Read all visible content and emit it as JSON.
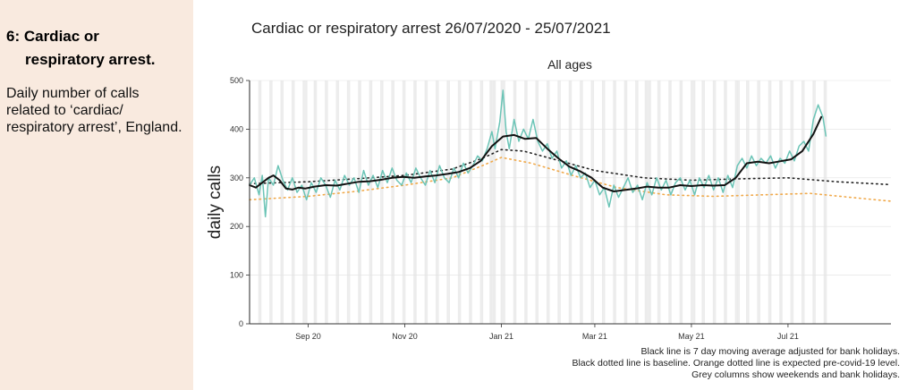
{
  "side_panel": {
    "heading_line1": "6: Cardiac or",
    "heading_line2": "respiratory  arrest.",
    "description": "Daily number of calls related to ‘cardiac/ respiratory arrest’, England."
  },
  "colors": {
    "panel_bg": "#f9eadf",
    "daily": "#6bc4b6",
    "moving_average": "#111111",
    "baseline": "#222222",
    "expected": "#f0a94a",
    "grey_columns": "#ececec"
  },
  "chart_data": {
    "type": "line",
    "title": "Cardiac or respiratory arrest 26/07/2020 - 25/07/2021",
    "subtitle": "All ages",
    "xlabel": "",
    "ylabel": "daily calls",
    "x_range": [
      "2020-07-26",
      "2021-09-04"
    ],
    "ylim": [
      0,
      500
    ],
    "y_ticks": [
      0,
      100,
      200,
      300,
      400,
      500
    ],
    "x_ticks": [
      {
        "date": "2020-09-01",
        "label": "Sep 20"
      },
      {
        "date": "2020-11-01",
        "label": "Nov 20"
      },
      {
        "date": "2021-01-01",
        "label": "Jan 21"
      },
      {
        "date": "2021-03-01",
        "label": "Mar 21"
      },
      {
        "date": "2021-05-01",
        "label": "May 21"
      },
      {
        "date": "2021-07-01",
        "label": "Jul 21"
      }
    ],
    "grey_columns": "weekends and bank holidays",
    "bank_holidays": [
      "2020-08-31",
      "2020-12-25",
      "2020-12-28",
      "2021-01-01",
      "2021-04-02",
      "2021-04-05",
      "2021-05-03",
      "2021-05-31"
    ],
    "series": [
      {
        "key": "daily",
        "style": "solid",
        "points": [
          [
            "2020-07-26",
            285
          ],
          [
            "2020-07-29",
            300
          ],
          [
            "2020-08-01",
            265
          ],
          [
            "2020-08-03",
            305
          ],
          [
            "2020-08-05",
            220
          ],
          [
            "2020-08-07",
            300
          ],
          [
            "2020-08-10",
            285
          ],
          [
            "2020-08-13",
            325
          ],
          [
            "2020-08-16",
            295
          ],
          [
            "2020-08-19",
            275
          ],
          [
            "2020-08-22",
            300
          ],
          [
            "2020-08-25",
            270
          ],
          [
            "2020-08-28",
            285
          ],
          [
            "2020-08-31",
            255
          ],
          [
            "2020-09-03",
            290
          ],
          [
            "2020-09-06",
            270
          ],
          [
            "2020-09-09",
            300
          ],
          [
            "2020-09-12",
            285
          ],
          [
            "2020-09-15",
            260
          ],
          [
            "2020-09-18",
            295
          ],
          [
            "2020-09-21",
            275
          ],
          [
            "2020-09-24",
            305
          ],
          [
            "2020-09-27",
            285
          ],
          [
            "2020-09-30",
            300
          ],
          [
            "2020-10-03",
            270
          ],
          [
            "2020-10-06",
            315
          ],
          [
            "2020-10-09",
            285
          ],
          [
            "2020-10-12",
            305
          ],
          [
            "2020-10-15",
            280
          ],
          [
            "2020-10-18",
            315
          ],
          [
            "2020-10-21",
            290
          ],
          [
            "2020-10-24",
            320
          ],
          [
            "2020-10-27",
            295
          ],
          [
            "2020-10-30",
            285
          ],
          [
            "2020-11-02",
            310
          ],
          [
            "2020-11-05",
            290
          ],
          [
            "2020-11-08",
            320
          ],
          [
            "2020-11-11",
            300
          ],
          [
            "2020-11-14",
            285
          ],
          [
            "2020-11-17",
            315
          ],
          [
            "2020-11-20",
            290
          ],
          [
            "2020-11-23",
            325
          ],
          [
            "2020-11-26",
            300
          ],
          [
            "2020-11-29",
            290
          ],
          [
            "2020-12-02",
            320
          ],
          [
            "2020-12-05",
            300
          ],
          [
            "2020-12-08",
            330
          ],
          [
            "2020-12-11",
            310
          ],
          [
            "2020-12-14",
            325
          ],
          [
            "2020-12-17",
            345
          ],
          [
            "2020-12-20",
            335
          ],
          [
            "2020-12-23",
            360
          ],
          [
            "2020-12-26",
            395
          ],
          [
            "2020-12-28",
            360
          ],
          [
            "2020-12-31",
            415
          ],
          [
            "2021-01-02",
            480
          ],
          [
            "2021-01-04",
            395
          ],
          [
            "2021-01-06",
            360
          ],
          [
            "2021-01-09",
            420
          ],
          [
            "2021-01-12",
            375
          ],
          [
            "2021-01-15",
            400
          ],
          [
            "2021-01-18",
            380
          ],
          [
            "2021-01-21",
            420
          ],
          [
            "2021-01-24",
            375
          ],
          [
            "2021-01-27",
            355
          ],
          [
            "2021-01-30",
            370
          ],
          [
            "2021-02-02",
            340
          ],
          [
            "2021-02-05",
            355
          ],
          [
            "2021-02-08",
            320
          ],
          [
            "2021-02-11",
            335
          ],
          [
            "2021-02-14",
            305
          ],
          [
            "2021-02-17",
            325
          ],
          [
            "2021-02-20",
            300
          ],
          [
            "2021-02-23",
            310
          ],
          [
            "2021-02-26",
            280
          ],
          [
            "2021-03-01",
            295
          ],
          [
            "2021-03-04",
            265
          ],
          [
            "2021-03-07",
            280
          ],
          [
            "2021-03-10",
            240
          ],
          [
            "2021-03-13",
            285
          ],
          [
            "2021-03-16",
            260
          ],
          [
            "2021-03-19",
            280
          ],
          [
            "2021-03-22",
            300
          ],
          [
            "2021-03-25",
            270
          ],
          [
            "2021-03-28",
            285
          ],
          [
            "2021-03-31",
            255
          ],
          [
            "2021-04-03",
            290
          ],
          [
            "2021-04-06",
            265
          ],
          [
            "2021-04-09",
            300
          ],
          [
            "2021-04-12",
            275
          ],
          [
            "2021-04-15",
            295
          ],
          [
            "2021-04-18",
            265
          ],
          [
            "2021-04-21",
            290
          ],
          [
            "2021-04-24",
            300
          ],
          [
            "2021-04-27",
            275
          ],
          [
            "2021-04-30",
            295
          ],
          [
            "2021-05-03",
            265
          ],
          [
            "2021-05-06",
            300
          ],
          [
            "2021-05-09",
            280
          ],
          [
            "2021-05-12",
            305
          ],
          [
            "2021-05-15",
            275
          ],
          [
            "2021-05-18",
            300
          ],
          [
            "2021-05-21",
            270
          ],
          [
            "2021-05-24",
            305
          ],
          [
            "2021-05-27",
            280
          ],
          [
            "2021-05-30",
            325
          ],
          [
            "2021-06-02",
            340
          ],
          [
            "2021-06-05",
            320
          ],
          [
            "2021-06-08",
            345
          ],
          [
            "2021-06-11",
            325
          ],
          [
            "2021-06-14",
            340
          ],
          [
            "2021-06-17",
            330
          ],
          [
            "2021-06-20",
            345
          ],
          [
            "2021-06-23",
            320
          ],
          [
            "2021-06-26",
            340
          ],
          [
            "2021-06-29",
            330
          ],
          [
            "2021-07-02",
            355
          ],
          [
            "2021-07-05",
            335
          ],
          [
            "2021-07-08",
            365
          ],
          [
            "2021-07-11",
            375
          ],
          [
            "2021-07-14",
            355
          ],
          [
            "2021-07-17",
            420
          ],
          [
            "2021-07-20",
            450
          ],
          [
            "2021-07-23",
            425
          ],
          [
            "2021-07-25",
            385
          ]
        ]
      },
      {
        "key": "moving_average",
        "name": "Black line is 7 day moving average adjusted for bank holidays.",
        "style": "solid",
        "points": [
          [
            "2020-07-26",
            285
          ],
          [
            "2020-07-30",
            280
          ],
          [
            "2020-08-03",
            290
          ],
          [
            "2020-08-07",
            300
          ],
          [
            "2020-08-10",
            305
          ],
          [
            "2020-08-14",
            295
          ],
          [
            "2020-08-18",
            278
          ],
          [
            "2020-08-22",
            276
          ],
          [
            "2020-08-26",
            280
          ],
          [
            "2020-08-30",
            278
          ],
          [
            "2020-09-05",
            282
          ],
          [
            "2020-09-12",
            285
          ],
          [
            "2020-09-19",
            284
          ],
          [
            "2020-09-26",
            288
          ],
          [
            "2020-10-03",
            292
          ],
          [
            "2020-10-10",
            293
          ],
          [
            "2020-10-17",
            296
          ],
          [
            "2020-10-24",
            300
          ],
          [
            "2020-10-31",
            302
          ],
          [
            "2020-11-07",
            300
          ],
          [
            "2020-11-14",
            303
          ],
          [
            "2020-11-21",
            305
          ],
          [
            "2020-11-28",
            308
          ],
          [
            "2020-12-05",
            312
          ],
          [
            "2020-12-12",
            320
          ],
          [
            "2020-12-19",
            335
          ],
          [
            "2020-12-26",
            365
          ],
          [
            "2021-01-02",
            385
          ],
          [
            "2021-01-09",
            388
          ],
          [
            "2021-01-16",
            380
          ],
          [
            "2021-01-23",
            382
          ],
          [
            "2021-01-30",
            360
          ],
          [
            "2021-02-06",
            340
          ],
          [
            "2021-02-13",
            323
          ],
          [
            "2021-02-20",
            313
          ],
          [
            "2021-02-27",
            300
          ],
          [
            "2021-03-06",
            280
          ],
          [
            "2021-03-13",
            272
          ],
          [
            "2021-03-20",
            275
          ],
          [
            "2021-03-27",
            278
          ],
          [
            "2021-04-03",
            282
          ],
          [
            "2021-04-10",
            280
          ],
          [
            "2021-04-17",
            280
          ],
          [
            "2021-04-24",
            285
          ],
          [
            "2021-05-01",
            283
          ],
          [
            "2021-05-08",
            285
          ],
          [
            "2021-05-15",
            284
          ],
          [
            "2021-05-22",
            285
          ],
          [
            "2021-05-29",
            300
          ],
          [
            "2021-06-05",
            330
          ],
          [
            "2021-06-12",
            333
          ],
          [
            "2021-06-19",
            330
          ],
          [
            "2021-06-26",
            334
          ],
          [
            "2021-07-03",
            338
          ],
          [
            "2021-07-10",
            355
          ],
          [
            "2021-07-17",
            390
          ],
          [
            "2021-07-22",
            425
          ]
        ]
      },
      {
        "key": "baseline",
        "name": "Black dotted line is baseline.",
        "style": "dotted",
        "points": [
          [
            "2020-07-26",
            288
          ],
          [
            "2020-09-01",
            292
          ],
          [
            "2020-10-01",
            298
          ],
          [
            "2020-11-01",
            305
          ],
          [
            "2020-12-01",
            318
          ],
          [
            "2020-12-20",
            340
          ],
          [
            "2021-01-01",
            358
          ],
          [
            "2021-01-15",
            355
          ],
          [
            "2021-02-01",
            340
          ],
          [
            "2021-03-01",
            315
          ],
          [
            "2021-04-01",
            300
          ],
          [
            "2021-05-01",
            295
          ],
          [
            "2021-06-01",
            298
          ],
          [
            "2021-07-01",
            300
          ],
          [
            "2021-08-01",
            292
          ],
          [
            "2021-09-04",
            286
          ]
        ]
      },
      {
        "key": "expected",
        "name": "Orange dotted line is expected pre-covid-19 level.",
        "style": "dotted",
        "points": [
          [
            "2020-07-26",
            255
          ],
          [
            "2020-09-01",
            262
          ],
          [
            "2020-10-01",
            272
          ],
          [
            "2020-11-01",
            285
          ],
          [
            "2020-12-01",
            300
          ],
          [
            "2020-12-20",
            325
          ],
          [
            "2021-01-01",
            342
          ],
          [
            "2021-01-20",
            330
          ],
          [
            "2021-02-15",
            305
          ],
          [
            "2021-03-15",
            280
          ],
          [
            "2021-04-15",
            265
          ],
          [
            "2021-05-15",
            262
          ],
          [
            "2021-06-15",
            265
          ],
          [
            "2021-07-15",
            268
          ],
          [
            "2021-08-15",
            258
          ],
          [
            "2021-09-04",
            252
          ]
        ]
      }
    ],
    "notes": [
      "Black line is 7 day moving average adjusted for bank holidays.",
      "Black dotted line is baseline. Orange dotted line is expected pre-covid-19 level.",
      "Grey columns show weekends and bank holidays."
    ]
  }
}
